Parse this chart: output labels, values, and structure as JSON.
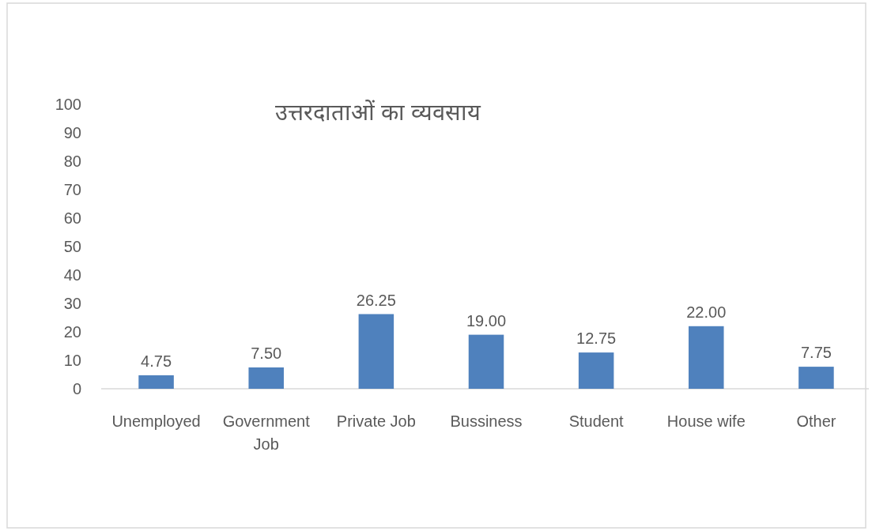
{
  "chart_data": {
    "type": "bar",
    "title": "उत्तरदाताओं का व्यवसाय",
    "categories": [
      "Unemployed",
      "Government Job",
      "Private Job",
      "Bussiness",
      "Student",
      "House wife",
      "Other"
    ],
    "values": [
      4.75,
      7.5,
      26.25,
      19.0,
      12.75,
      22.0,
      7.75
    ],
    "value_labels": [
      "4.75",
      "7.50",
      "26.25",
      "19.00",
      "12.75",
      "22.00",
      "7.75"
    ],
    "color": "#4f81bd",
    "ylim": [
      0,
      100
    ],
    "yticks": [
      0,
      10,
      20,
      30,
      40,
      50,
      60,
      70,
      80,
      90,
      100
    ],
    "grid": false
  }
}
